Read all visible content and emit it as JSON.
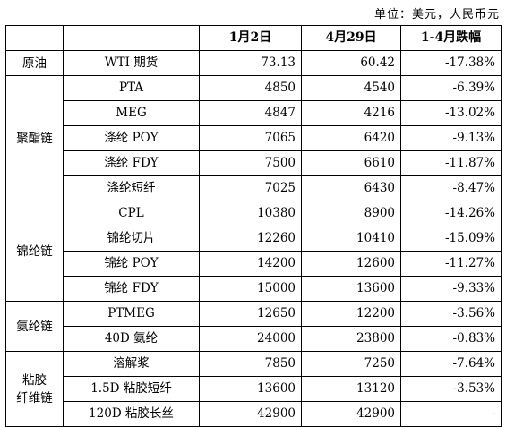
{
  "unit_note": "单位：美元，人民币元",
  "headers": [
    "",
    "",
    "1月2日",
    "4月29日",
    "1-4月跌幅"
  ],
  "groups": [
    {
      "name": "原油",
      "rows": [
        {
          "item": "WTI 期货",
          "jan2": "73.13",
          "apr29": "60.42",
          "change": "-17.38%"
        }
      ]
    },
    {
      "name": "聚酯链",
      "rows": [
        {
          "item": "PTA",
          "jan2": "4850",
          "apr29": "4540",
          "change": "-6.39%"
        },
        {
          "item": "MEG",
          "jan2": "4847",
          "apr29": "4216",
          "change": "-13.02%"
        },
        {
          "item": "涤纶 POY",
          "jan2": "7065",
          "apr29": "6420",
          "change": "-9.13%"
        },
        {
          "item": "涤纶 FDY",
          "jan2": "7500",
          "apr29": "6610",
          "change": "-11.87%"
        },
        {
          "item": "涤纶短纤",
          "jan2": "7025",
          "apr29": "6430",
          "change": "-8.47%"
        }
      ]
    },
    {
      "name": "锦纶链",
      "rows": [
        {
          "item": "CPL",
          "jan2": "10380",
          "apr29": "8900",
          "change": "-14.26%"
        },
        {
          "item": "锦纶切片",
          "jan2": "12260",
          "apr29": "10410",
          "change": "-15.09%"
        },
        {
          "item": "锦纶 POY",
          "jan2": "14200",
          "apr29": "12600",
          "change": "-11.27%"
        },
        {
          "item": "锦纶 FDY",
          "jan2": "15000",
          "apr29": "13600",
          "change": "-9.33%"
        }
      ]
    },
    {
      "name": "氨纶链",
      "rows": [
        {
          "item": "PTMEG",
          "jan2": "12650",
          "apr29": "12200",
          "change": "-3.56%"
        },
        {
          "item": "40D 氨纶",
          "jan2": "24000",
          "apr29": "23800",
          "change": "-0.83%"
        }
      ]
    },
    {
      "name": "粘胶\n纤维链",
      "rows": [
        {
          "item": "溶解浆",
          "jan2": "7850",
          "apr29": "7250",
          "change": "-7.64%"
        },
        {
          "item": "1.5D 粘胶短纤",
          "jan2": "13600",
          "apr29": "13120",
          "change": "-3.53%"
        },
        {
          "item": "120D 粘胶长丝",
          "jan2": "42900",
          "apr29": "42900",
          "change": "-"
        }
      ]
    }
  ]
}
